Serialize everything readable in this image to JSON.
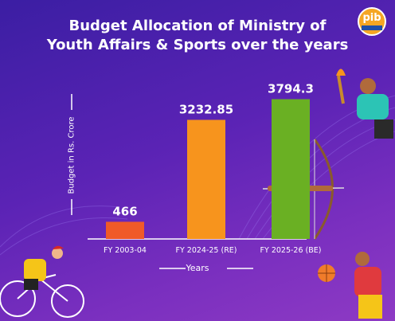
{
  "title_line1": "Budget Allocation of Ministry of",
  "title_line2": "Youth Affairs & Sports over the years",
  "logo_text": "pib",
  "chart_data": {
    "type": "bar",
    "title": "Budget Allocation of Ministry of Youth Affairs & Sports over the years",
    "xlabel": "Years",
    "ylabel": "Budget in Rs. Crore",
    "categories": [
      "FY 2003-04",
      "FY 2024-25 (RE)",
      "FY 2025-26 (BE)"
    ],
    "values": [
      466,
      3232.85,
      3794.3
    ],
    "value_labels": [
      "466",
      "3232.85",
      "3794.3"
    ],
    "bar_colors": [
      "#f05a28",
      "#f7941d",
      "#6ab023"
    ],
    "ylim": [
      0,
      4000
    ],
    "grid": false,
    "legend": "none"
  },
  "colors": {
    "background_top": "#3b1ea3",
    "background_bottom": "#8e3ac4",
    "text": "#ffffff",
    "logo": "#f5a623"
  }
}
